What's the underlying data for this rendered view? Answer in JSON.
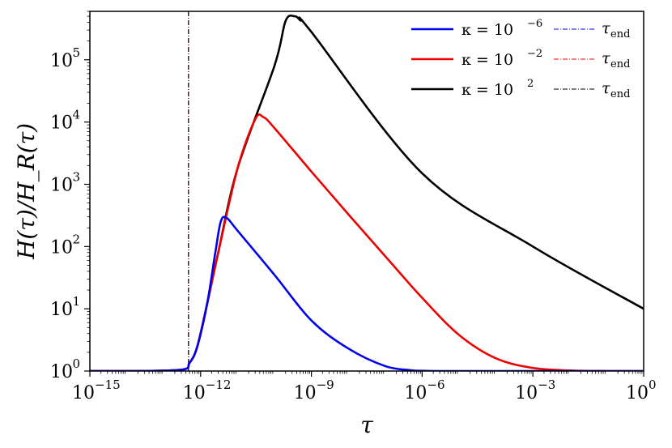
{
  "chart_data": {
    "type": "line",
    "x_scale": "log",
    "y_scale": "log",
    "xlim": [
      1e-15,
      1
    ],
    "ylim": [
      1,
      600000
    ],
    "xlabel": "τ",
    "ylabel": "H(τ)/H_R(τ)",
    "grid": false,
    "legend_placement": "top-right",
    "x_ticks": [
      {
        "base": "10",
        "exp": "−15",
        "value": 1e-15
      },
      {
        "base": "10",
        "exp": "−12",
        "value": 1e-12
      },
      {
        "base": "10",
        "exp": "−9",
        "value": 1e-09
      },
      {
        "base": "10",
        "exp": "−6",
        "value": 1e-06
      },
      {
        "base": "10",
        "exp": "−3",
        "value": 0.001
      },
      {
        "base": "10",
        "exp": "0",
        "value": 1
      }
    ],
    "y_ticks": [
      {
        "base": "10",
        "exp": "0",
        "value": 1
      },
      {
        "base": "10",
        "exp": "1",
        "value": 10
      },
      {
        "base": "10",
        "exp": "2",
        "value": 100
      },
      {
        "base": "10",
        "exp": "3",
        "value": 1000
      },
      {
        "base": "10",
        "exp": "4",
        "value": 10000
      },
      {
        "base": "10",
        "exp": "5",
        "value": 100000
      }
    ],
    "series": [
      {
        "name_prefix": "κ = 10",
        "name_exp": "−6",
        "color": "#0000ee",
        "x": [
          1e-15,
          1e-14,
          3e-13,
          5e-13,
          8e-13,
          1.5e-12,
          2.5e-12,
          3.5e-12,
          5e-12,
          1e-11,
          1e-10,
          1e-09,
          1e-08,
          1e-07,
          5e-07,
          1e-06,
          3e-06,
          1e-05,
          0.0001,
          1
        ],
        "y": [
          1,
          1,
          1.05,
          1.35,
          2.4,
          12,
          80,
          250,
          290,
          180,
          35,
          6.5,
          2.3,
          1.2,
          1.03,
          1.01,
          1,
          1,
          1,
          1
        ]
      },
      {
        "name_prefix": "κ = 10",
        "name_exp": "−2",
        "color": "#ee0000",
        "x": [
          1e-15,
          1e-14,
          3e-13,
          5e-13,
          8e-13,
          1.5e-12,
          3e-12,
          1e-11,
          3e-11,
          5e-11,
          1e-10,
          1e-09,
          1e-08,
          1e-07,
          1e-06,
          1e-05,
          0.0001,
          0.001,
          0.01,
          0.1,
          1
        ],
        "y": [
          1,
          1,
          1.05,
          1.35,
          2.4,
          12,
          80,
          1800,
          11000,
          12000,
          8000,
          1600,
          330,
          70,
          15,
          3.8,
          1.6,
          1.12,
          1.02,
          1,
          1
        ]
      },
      {
        "name_prefix": "κ = 10",
        "name_exp": "2",
        "color": "#000000",
        "x": [
          1e-15,
          1e-14,
          3e-13,
          5e-13,
          8e-13,
          1.5e-12,
          3e-12,
          1e-11,
          1e-10,
          2e-10,
          3.5e-10,
          5e-10,
          1e-09,
          1e-06,
          0.001,
          1
        ],
        "y": [
          1,
          1,
          1.05,
          1.35,
          2.4,
          12,
          80,
          1800,
          80000,
          420000,
          500000,
          430000,
          280000,
          1500,
          100,
          10
        ]
      }
    ],
    "vlines": [
      {
        "x": 4.7e-13,
        "color": "#0000ee",
        "label": "τ",
        "label_sub": "end"
      },
      {
        "x": 4.7e-13,
        "color": "#ee0000",
        "label": "τ",
        "label_sub": "end"
      },
      {
        "x": 4.7e-13,
        "color": "#000000",
        "label": "τ",
        "label_sub": "end"
      }
    ]
  }
}
